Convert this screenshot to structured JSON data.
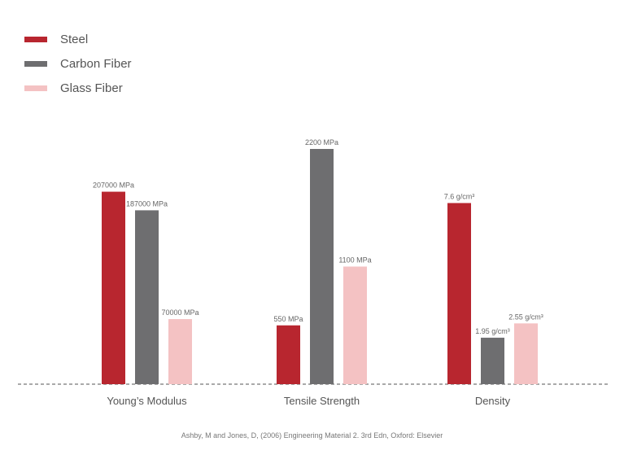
{
  "chart_data": {
    "type": "bar",
    "categories": [
      "Young’s Modulus",
      "Tensile Strength",
      "Density"
    ],
    "series": [
      {
        "name": "Steel",
        "color": "#b8262f",
        "values": [
          207000,
          550,
          7.6
        ],
        "labels": [
          "207000 MPa",
          "550 MPa",
          "7.6 g/cm³"
        ]
      },
      {
        "name": "Carbon Fiber",
        "color": "#6e6e70",
        "values": [
          187000,
          2200,
          1.95
        ],
        "labels": [
          "187000 MPa",
          "2200 MPa",
          "1.95 g/cm³"
        ]
      },
      {
        "name": "Glass Fiber",
        "color": "#f4c2c3",
        "values": [
          70000,
          1100,
          2.55
        ],
        "labels": [
          "70000 MPa",
          "1100 MPa",
          "2.55 g/cm³"
        ]
      }
    ],
    "units": [
      "MPa",
      "MPa",
      "g/cm³"
    ],
    "group_max": [
      253000,
      2200,
      9.87
    ],
    "baseline": "dashed",
    "grid": false,
    "legend": "top-left"
  },
  "source": "Ashby, M and Jones, D, (2006) Engineering Material 2. 3rd Edn, Oxford: Elsevier"
}
